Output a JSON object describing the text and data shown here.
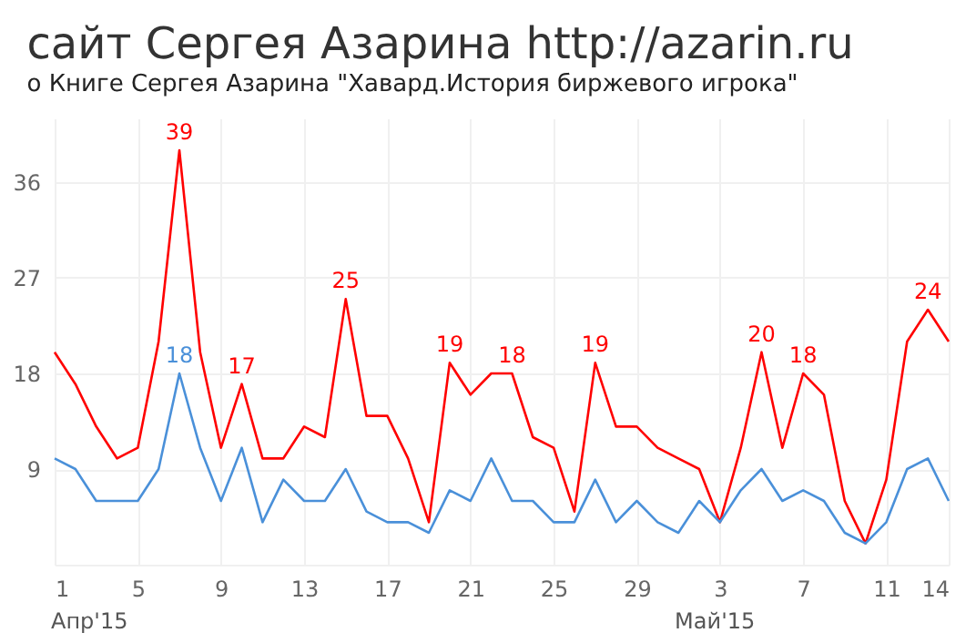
{
  "chart_data": {
    "type": "line",
    "title": "сайт Сергея Азарина http://azarin.ru",
    "subtitle": "о Книге Сергея Азарина \"Хавард.История биржевого игрока\"",
    "x": [
      "2015-04-01",
      "2015-04-02",
      "2015-04-03",
      "2015-04-04",
      "2015-04-05",
      "2015-04-06",
      "2015-04-07",
      "2015-04-08",
      "2015-04-09",
      "2015-04-10",
      "2015-04-11",
      "2015-04-12",
      "2015-04-13",
      "2015-04-14",
      "2015-04-15",
      "2015-04-16",
      "2015-04-17",
      "2015-04-18",
      "2015-04-19",
      "2015-04-20",
      "2015-04-21",
      "2015-04-22",
      "2015-04-23",
      "2015-04-24",
      "2015-04-25",
      "2015-04-26",
      "2015-04-27",
      "2015-04-28",
      "2015-04-29",
      "2015-04-30",
      "2015-05-01",
      "2015-05-02",
      "2015-05-03",
      "2015-05-04",
      "2015-05-05",
      "2015-05-06",
      "2015-05-07",
      "2015-05-08",
      "2015-05-09",
      "2015-05-10",
      "2015-05-11",
      "2015-05-12",
      "2015-05-13",
      "2015-05-14"
    ],
    "series": [
      {
        "color": "#ff0000",
        "values": [
          20,
          17,
          13,
          10,
          11,
          21,
          39,
          20,
          11,
          17,
          10,
          10,
          13,
          12,
          25,
          14,
          14,
          10,
          4,
          19,
          16,
          18,
          18,
          12,
          11,
          5,
          19,
          13,
          13,
          11,
          10,
          9,
          4,
          11,
          20,
          11,
          18,
          16,
          6,
          2,
          8,
          21,
          24,
          21
        ],
        "value_labels": [
          null,
          null,
          null,
          null,
          null,
          null,
          "39",
          null,
          null,
          "17",
          null,
          null,
          null,
          null,
          "25",
          null,
          null,
          null,
          null,
          "19",
          null,
          null,
          "18",
          null,
          null,
          null,
          "19",
          null,
          null,
          null,
          null,
          null,
          null,
          null,
          "20",
          null,
          "18",
          null,
          null,
          null,
          null,
          null,
          "24",
          null
        ]
      },
      {
        "color": "#4a90d9",
        "values": [
          10,
          9,
          6,
          6,
          6,
          9,
          18,
          11,
          6,
          11,
          4,
          8,
          6,
          6,
          9,
          5,
          4,
          4,
          3,
          7,
          6,
          10,
          6,
          6,
          4,
          4,
          8,
          4,
          6,
          4,
          3,
          6,
          4,
          7,
          9,
          6,
          7,
          6,
          3,
          2,
          4,
          9,
          10,
          6
        ],
        "value_labels": [
          null,
          null,
          null,
          null,
          null,
          null,
          "18",
          null,
          null,
          null,
          null,
          null,
          null,
          null,
          null,
          null,
          null,
          null,
          null,
          null,
          null,
          null,
          null,
          null,
          null,
          null,
          null,
          null,
          null,
          null,
          null,
          null,
          null,
          null,
          null,
          null,
          null,
          null,
          null,
          null,
          null,
          null,
          null,
          null
        ]
      }
    ],
    "xlim": [
      "2015-04-01",
      "2015-05-14"
    ],
    "xticks": [
      {
        "value": "2015-04-01",
        "label": "1"
      },
      {
        "value": "2015-04-05",
        "label": "5"
      },
      {
        "value": "2015-04-09",
        "label": "9"
      },
      {
        "value": "2015-04-13",
        "label": "13"
      },
      {
        "value": "2015-04-17",
        "label": "17"
      },
      {
        "value": "2015-04-21",
        "label": "21"
      },
      {
        "value": "2015-04-25",
        "label": "25"
      },
      {
        "value": "2015-04-29",
        "label": "29"
      },
      {
        "value": "2015-05-03",
        "label": "3"
      },
      {
        "value": "2015-05-07",
        "label": "7"
      },
      {
        "value": "2015-05-11",
        "label": "11"
      },
      {
        "value": "2015-05-14",
        "label": "14"
      }
    ],
    "ylim": [
      0,
      42
    ],
    "yticks": [
      {
        "value": 0,
        "label": null
      },
      9,
      18,
      27,
      36
    ],
    "annotations": [
      "Апр'15",
      "Май'15"
    ],
    "grid": true,
    "legend": false,
    "marker": "none",
    "line_style": "solid"
  }
}
